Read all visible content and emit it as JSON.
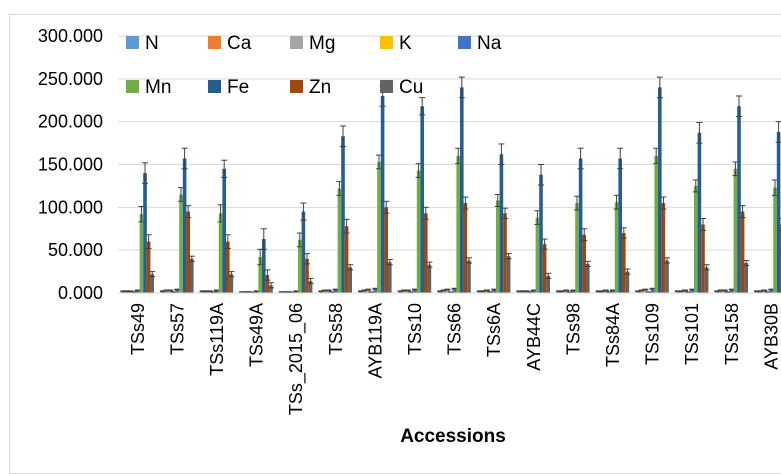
{
  "chart_data": {
    "type": "bar",
    "title": "",
    "xlabel": "Accessions",
    "ylabel": "",
    "ylim": [
      0,
      300
    ],
    "yticks": [
      "0.000",
      "50.000",
      "100.000",
      "150.000",
      "200.000",
      "250.000",
      "300.000"
    ],
    "grid": true,
    "legend_position": "top-left",
    "categories": [
      "TSs49",
      "TSs57",
      "TSs119A",
      "TSs49A",
      "TSs_2015_06",
      "TSs58",
      "AYB119A",
      "TSs10",
      "TSs66",
      "TSs6A",
      "AYB44C",
      "TSs98",
      "TSs84A",
      "TSs109",
      "TSs101",
      "TSs158",
      "AYB30B"
    ],
    "series": [
      {
        "name": "N",
        "color": "#5b9bd5",
        "values": [
          2,
          2,
          2,
          1,
          1,
          2,
          2,
          2,
          2,
          2,
          2,
          2,
          2,
          2,
          2,
          2,
          2
        ],
        "errors": [
          0.5,
          0.5,
          0.5,
          0.5,
          0.5,
          0.5,
          0.5,
          0.5,
          0.5,
          0.5,
          0.5,
          0.5,
          0.5,
          0.5,
          0.5,
          0.5,
          0.5
        ]
      },
      {
        "name": "Ca",
        "color": "#ed7d31",
        "values": [
          2,
          3,
          2,
          1,
          1,
          3,
          3,
          3,
          3,
          2,
          2,
          2,
          2,
          3,
          2,
          3,
          2
        ],
        "errors": [
          0.5,
          0.5,
          0.5,
          0.5,
          0.5,
          0.5,
          0.5,
          0.5,
          0.5,
          0.5,
          0.5,
          0.5,
          0.5,
          0.5,
          0.5,
          0.5,
          0.5
        ]
      },
      {
        "name": "Mg",
        "color": "#a5a5a5",
        "values": [
          2,
          3,
          2,
          1,
          1,
          3,
          4,
          3,
          4,
          3,
          2,
          3,
          3,
          4,
          3,
          3,
          3
        ],
        "errors": [
          0.5,
          0.5,
          0.5,
          0.5,
          0.5,
          0.5,
          0.5,
          0.5,
          0.5,
          0.5,
          0.5,
          0.5,
          0.5,
          0.5,
          0.5,
          0.5,
          0.5
        ]
      },
      {
        "name": "K",
        "color": "#ffc000",
        "values": [
          1,
          1,
          1,
          0.5,
          0.5,
          1,
          1,
          1,
          1,
          1,
          1,
          1,
          1,
          1,
          1,
          1,
          1
        ],
        "errors": [
          0.3,
          0.3,
          0.3,
          0.3,
          0.3,
          0.3,
          0.3,
          0.3,
          0.3,
          0.3,
          0.3,
          0.3,
          0.3,
          0.3,
          0.3,
          0.3,
          0.3
        ]
      },
      {
        "name": "Na",
        "color": "#4472c4",
        "values": [
          3,
          4,
          3,
          2,
          2,
          4,
          5,
          4,
          5,
          4,
          3,
          3,
          3,
          5,
          4,
          4,
          4
        ],
        "errors": [
          0.5,
          0.5,
          0.5,
          0.5,
          0.5,
          0.5,
          0.5,
          0.5,
          0.5,
          0.5,
          0.5,
          0.5,
          0.5,
          0.5,
          0.5,
          0.5,
          0.5
        ]
      },
      {
        "name": "Mn",
        "color": "#70ad47",
        "values": [
          92,
          115,
          93,
          42,
          62,
          122,
          153,
          143,
          160,
          108,
          88,
          105,
          106,
          160,
          125,
          145,
          123
        ],
        "errors": [
          9,
          8,
          10,
          9,
          8,
          8,
          8,
          8,
          9,
          7,
          8,
          8,
          8,
          9,
          7,
          8,
          9
        ]
      },
      {
        "name": "Fe",
        "color": "#255e91",
        "values": [
          140,
          157,
          145,
          63,
          95,
          183,
          230,
          218,
          240,
          162,
          138,
          157,
          157,
          240,
          187,
          218,
          188
        ],
        "errors": [
          12,
          12,
          10,
          12,
          10,
          12,
          12,
          10,
          12,
          12,
          12,
          12,
          12,
          12,
          12,
          12,
          12
        ]
      },
      {
        "name": "Zn",
        "color": "#9e480e",
        "values": [
          60,
          95,
          60,
          21,
          40,
          78,
          100,
          93,
          105,
          93,
          57,
          68,
          70,
          105,
          80,
          95,
          80
        ],
        "errors": [
          8,
          7,
          8,
          6,
          6,
          8,
          7,
          7,
          7,
          6,
          6,
          7,
          6,
          7,
          7,
          7,
          7
        ]
      },
      {
        "name": "Cu",
        "color": "#636363",
        "values": [
          22,
          40,
          22,
          9,
          14,
          30,
          36,
          33,
          38,
          43,
          20,
          34,
          25,
          38,
          30,
          35,
          30
        ],
        "errors": [
          3,
          3,
          3,
          3,
          3,
          3,
          3,
          3,
          3,
          3,
          3,
          3,
          3,
          3,
          3,
          3,
          3
        ]
      }
    ]
  }
}
